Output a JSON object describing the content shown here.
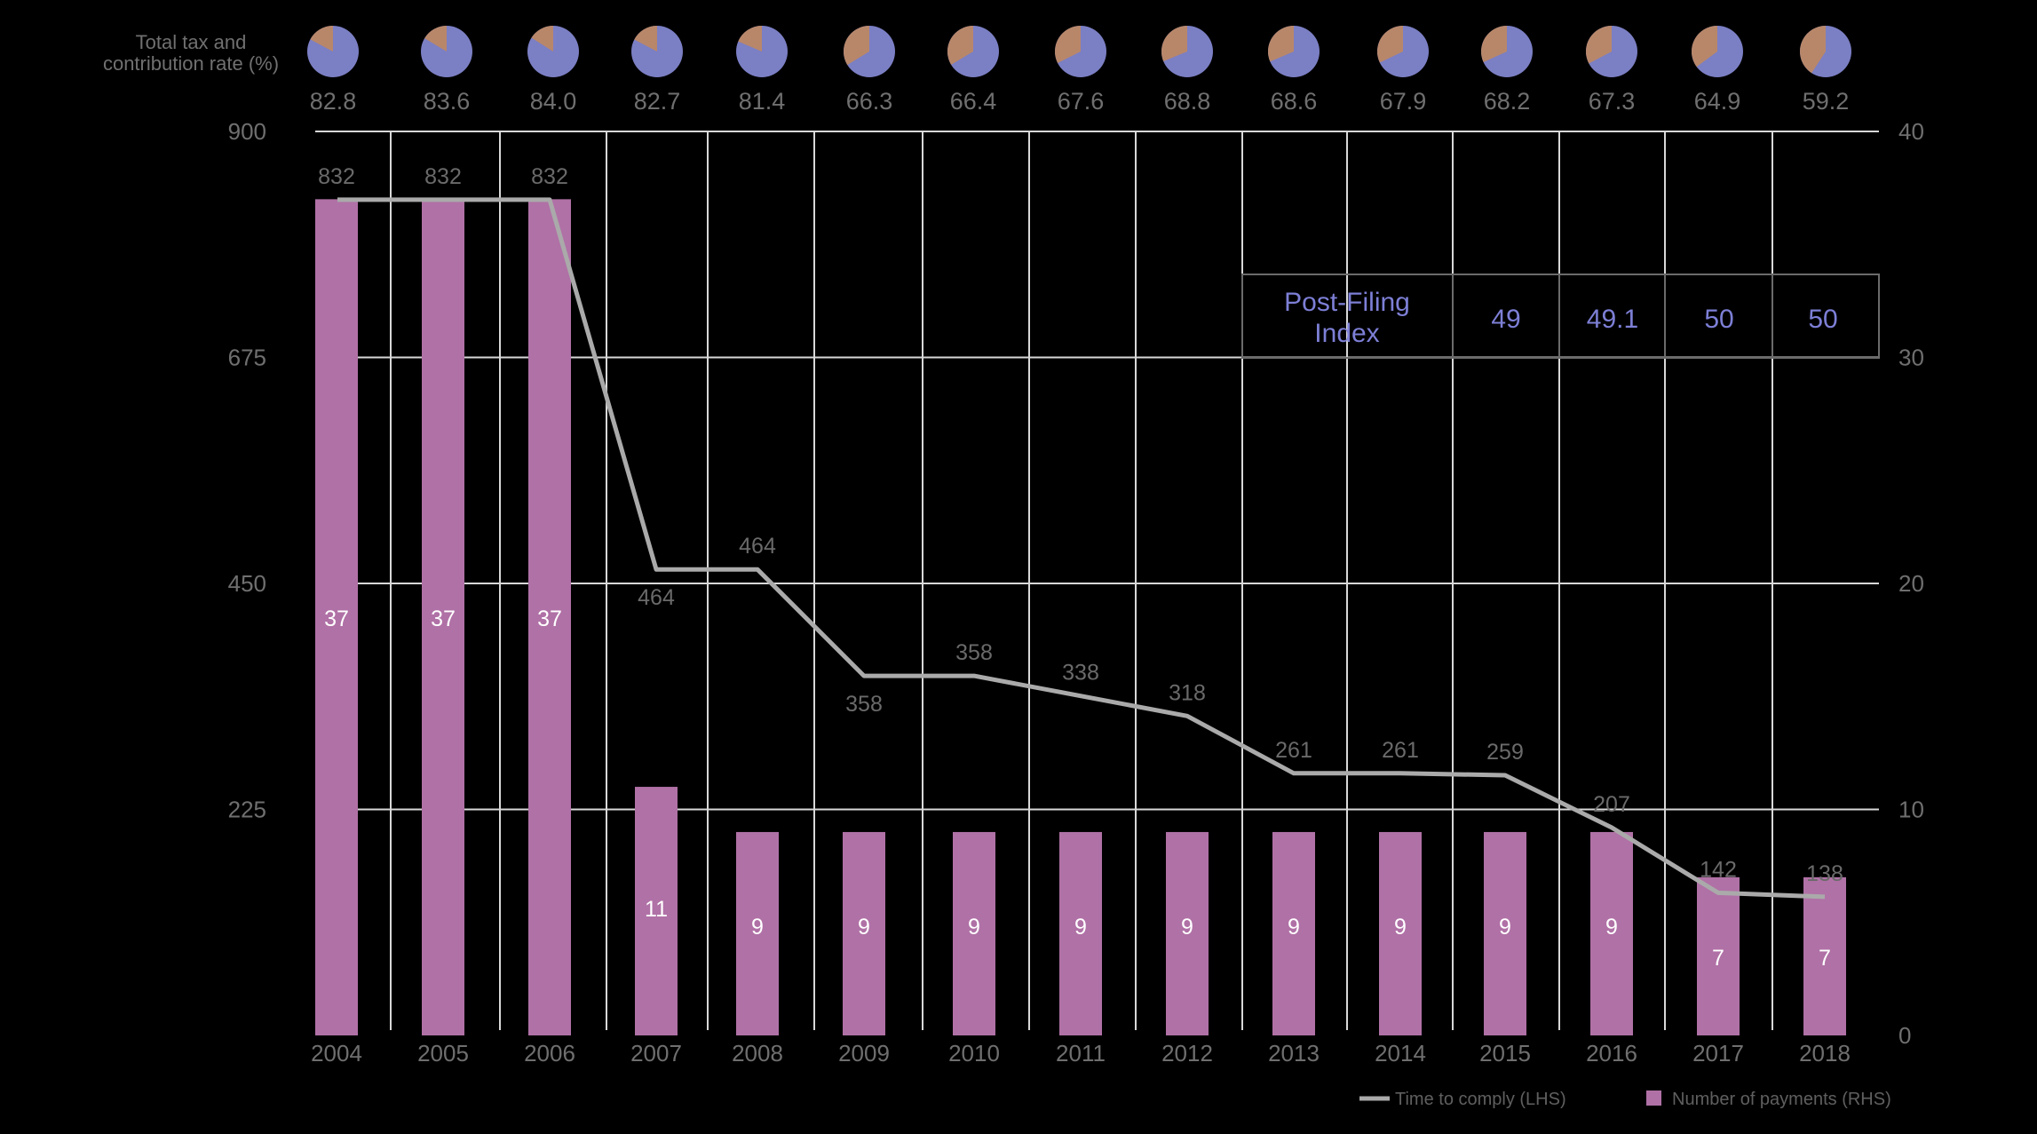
{
  "chart_data": {
    "type": "bar",
    "header_label_line1": "Total tax and",
    "header_label_line2": "contribution rate (%)",
    "categories": [
      "2004",
      "2005",
      "2006",
      "2007",
      "2008",
      "2009",
      "2010",
      "2011",
      "2012",
      "2013",
      "2014",
      "2015",
      "2016",
      "2017",
      "2018"
    ],
    "total_tax_rate": [
      "82.8",
      "83.6",
      "84.0",
      "82.7",
      "81.4",
      "66.3",
      "66.4",
      "67.6",
      "68.8",
      "68.6",
      "67.9",
      "68.2",
      "67.3",
      "64.9",
      "59.2"
    ],
    "series": [
      {
        "name": "Time to comply (LHS)",
        "type": "line",
        "axis": "left",
        "values": [
          832,
          832,
          832,
          464,
          464,
          358,
          358,
          338,
          318,
          261,
          261,
          259,
          207,
          142,
          138
        ],
        "color": "#aaaaaa"
      },
      {
        "name": "Number of payments (RHS)",
        "type": "bar",
        "axis": "right",
        "values": [
          37,
          37,
          37,
          11,
          9,
          9,
          9,
          9,
          9,
          9,
          9,
          9,
          9,
          7,
          7
        ],
        "color": "#b071a6"
      }
    ],
    "y_left": {
      "ticks": [
        "900",
        "675",
        "450",
        "225"
      ],
      "range": [
        0,
        900
      ]
    },
    "y_right": {
      "ticks": [
        "40",
        "30",
        "20",
        "10",
        "0"
      ],
      "range": [
        0,
        40
      ]
    },
    "post_filing": {
      "label_line1": "Post-Filing",
      "label_line2": "Index",
      "values": [
        "49",
        "49.1",
        "50",
        "50"
      ]
    },
    "legend": {
      "position": "bottom-right"
    },
    "grid": true,
    "colors": {
      "pie_main": "#7b7fc4",
      "pie_slice": "#b8876a",
      "bar": "#b071a6",
      "line": "#aaaaaa",
      "grid": "#d8d8d8",
      "table_text": "#7d7fd6"
    }
  }
}
